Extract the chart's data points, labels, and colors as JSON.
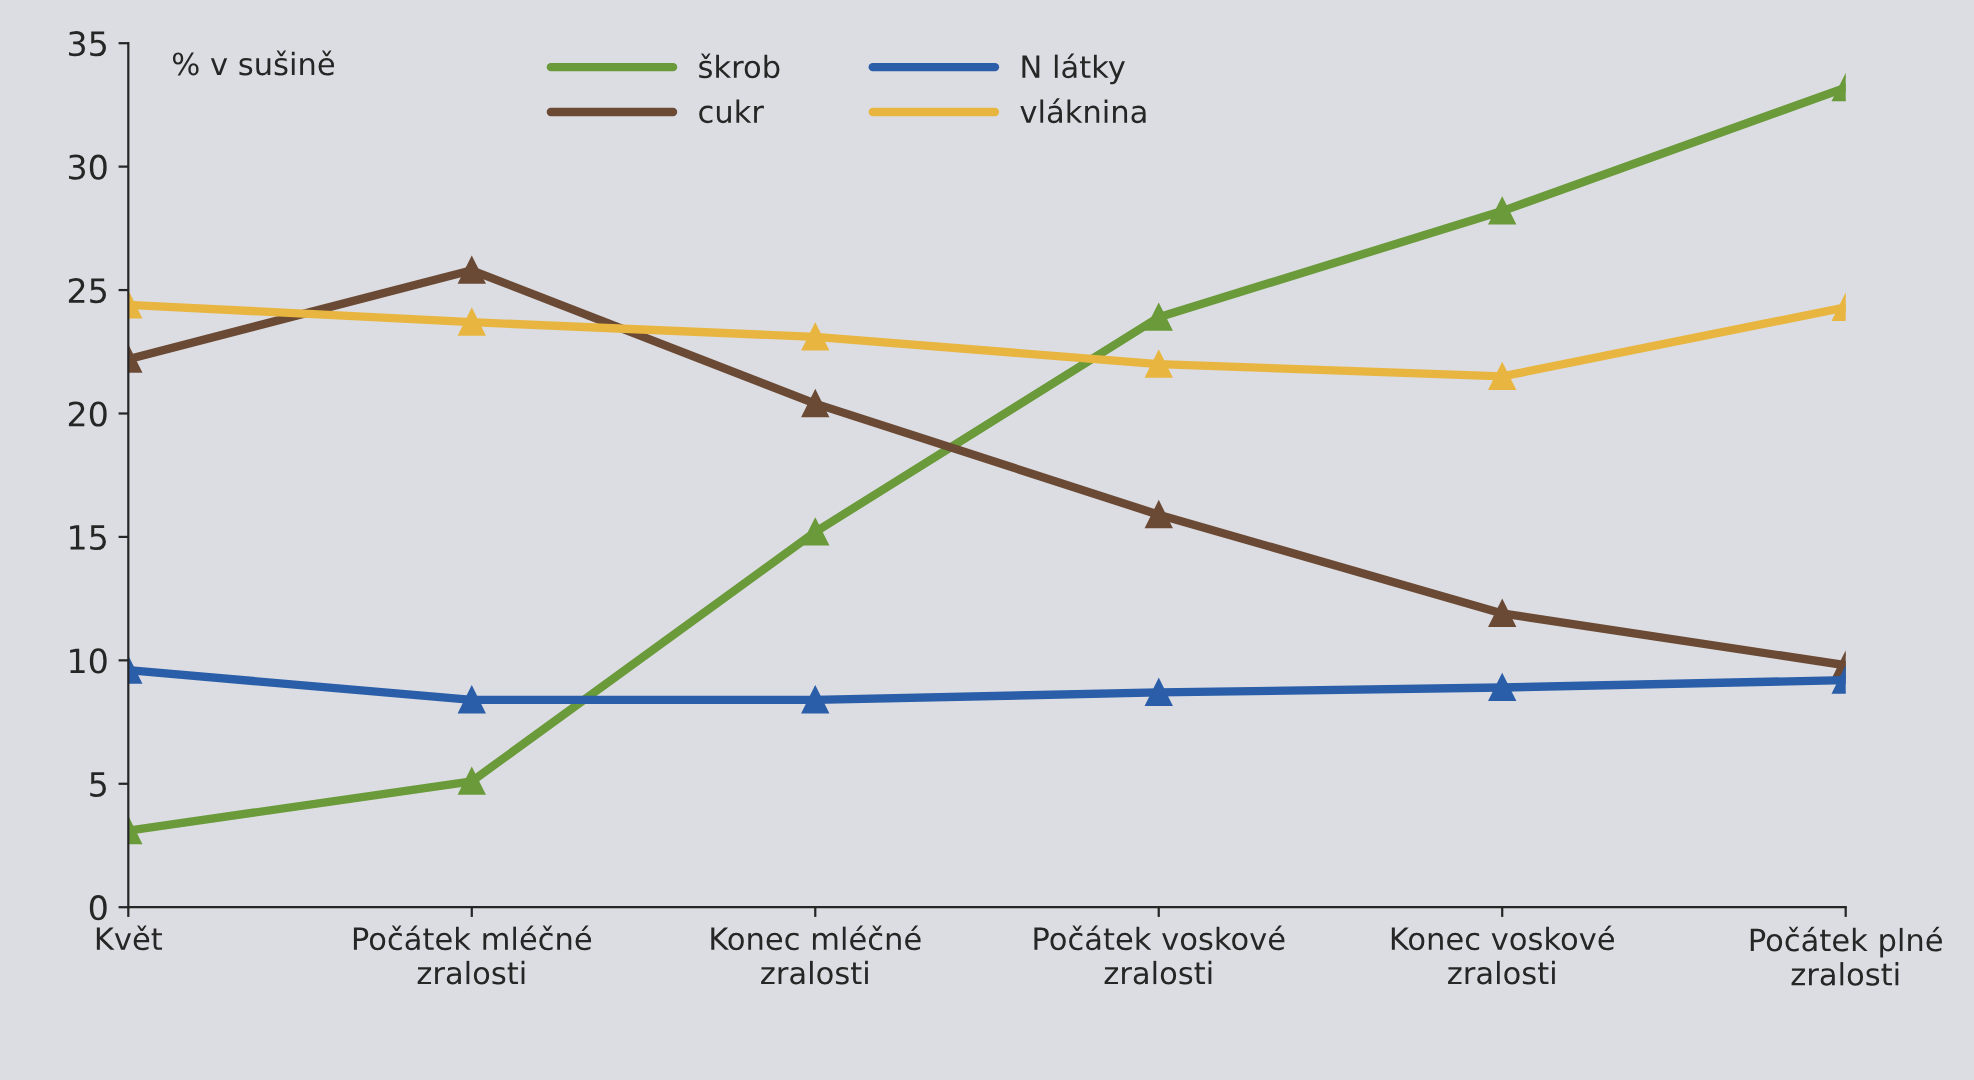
{
  "chart_data": {
    "type": "line",
    "ylabel": "% v sušině",
    "categories": [
      "Květ",
      "Počátek mléčné\nzralosti",
      "Konec mléčné\nzralosti",
      "Počátek voskové\nzralosti",
      "Konec voskové\nzralosti",
      "Počátek plné\nzralosti"
    ],
    "series": [
      {
        "name": "škrob",
        "color": "#6a9a3a",
        "values": [
          3.1,
          5.1,
          15.2,
          23.9,
          28.2,
          33.2
        ]
      },
      {
        "name": "cukr",
        "color": "#6b4a35",
        "values": [
          22.2,
          25.8,
          20.4,
          15.9,
          11.9,
          9.8
        ]
      },
      {
        "name": "N látky",
        "color": "#2a5ea8",
        "values": [
          9.6,
          8.4,
          8.4,
          8.7,
          8.9,
          9.2
        ]
      },
      {
        "name": "vláknina",
        "color": "#e8b640",
        "values": [
          24.4,
          23.7,
          23.1,
          22.0,
          21.5,
          24.3
        ]
      }
    ],
    "ylim": [
      0,
      35
    ],
    "yticks": [
      0,
      5,
      10,
      15,
      20,
      25,
      30,
      35
    ],
    "grid": false,
    "legend": "top",
    "marker": "triangle",
    "line_style": "solid"
  }
}
